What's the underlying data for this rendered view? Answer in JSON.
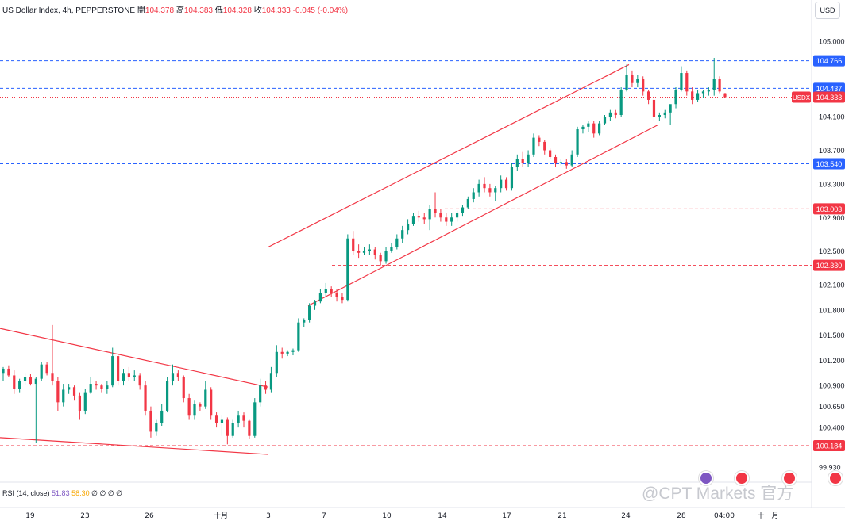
{
  "header": {
    "symbol": "US Dollar Index, 4h, PEPPERSTONE",
    "o_label": "開",
    "o_val": "104.378",
    "h_label": "高",
    "h_val": "104.383",
    "l_label": "低",
    "l_val": "104.328",
    "c_label": "收",
    "c_val": "104.333",
    "change": "-0.045 (-0.04%)"
  },
  "currency_button": "USD",
  "indicator": {
    "name": "RSI (14, close)",
    "v1": "51.83",
    "v2": "58.30",
    "extras": "∅ ∅ ∅ ∅"
  },
  "watermark": "@CPT Markets 官方",
  "colors": {
    "up": "#089981",
    "down": "#f23645",
    "blue_level": "#2962ff",
    "red_level": "#f23645",
    "channel": "#f23645"
  },
  "chart_data": {
    "type": "candlestick",
    "title": "US Dollar Index, 4h, PEPPERSTONE",
    "x_ticks": [
      "19",
      "23",
      "26",
      "十月",
      "3",
      "7",
      "10",
      "14",
      "17",
      "21",
      "24",
      "28",
      "04:00",
      "十一月"
    ],
    "y_ticks": [
      "105.000",
      "104.100",
      "103.700",
      "103.300",
      "102.900",
      "102.500",
      "102.100",
      "101.800",
      "101.500",
      "101.200",
      "100.900",
      "100.650",
      "100.400",
      "99.930"
    ],
    "ylim": [
      99.75,
      105.3
    ],
    "current_price": {
      "label": "USDX",
      "value": "104.333"
    },
    "levels": [
      {
        "value": "104.766",
        "color": "blue",
        "from_date": "start"
      },
      {
        "value": "104.437",
        "color": "blue",
        "from_date": "start"
      },
      {
        "value": "103.540",
        "color": "blue",
        "from_date": "start"
      },
      {
        "value": "103.003",
        "color": "red",
        "from_date": "Oct 14"
      },
      {
        "value": "102.330",
        "color": "red",
        "from_date": "Oct 8"
      },
      {
        "value": "100.184",
        "color": "red",
        "from_date": "start"
      }
    ],
    "trendlines": [
      {
        "name": "descending upper",
        "from": [
          "Sep 17",
          101.58
        ],
        "to": [
          "Oct 3",
          100.88
        ]
      },
      {
        "name": "descending lower",
        "from": [
          "Sep 17",
          100.28
        ],
        "to": [
          "Oct 3",
          100.08
        ]
      },
      {
        "name": "channel upper",
        "from": [
          "Oct 3",
          102.55
        ],
        "to": [
          "Oct 24",
          104.72
        ]
      },
      {
        "name": "channel lower",
        "from": [
          "Oct 5",
          101.85
        ],
        "to": [
          "Oct 26",
          104.0
        ]
      }
    ],
    "candles": [
      {
        "o": 101.05,
        "h": 101.12,
        "l": 100.95,
        "c": 101.1
      },
      {
        "o": 101.1,
        "h": 101.14,
        "l": 101.0,
        "c": 101.02
      },
      {
        "o": 101.02,
        "h": 101.08,
        "l": 100.8,
        "c": 100.86
      },
      {
        "o": 100.86,
        "h": 100.98,
        "l": 100.82,
        "c": 100.95
      },
      {
        "o": 100.95,
        "h": 101.05,
        "l": 100.9,
        "c": 101.0
      },
      {
        "o": 101.0,
        "h": 101.04,
        "l": 100.9,
        "c": 100.92
      },
      {
        "o": 100.92,
        "h": 101.0,
        "l": 100.22,
        "c": 100.98
      },
      {
        "o": 100.98,
        "h": 101.18,
        "l": 100.95,
        "c": 101.15
      },
      {
        "o": 101.15,
        "h": 101.18,
        "l": 101.02,
        "c": 101.05
      },
      {
        "o": 101.05,
        "h": 101.62,
        "l": 100.9,
        "c": 100.95
      },
      {
        "o": 100.95,
        "h": 101.0,
        "l": 100.6,
        "c": 100.7
      },
      {
        "o": 100.7,
        "h": 100.92,
        "l": 100.65,
        "c": 100.85
      },
      {
        "o": 100.85,
        "h": 100.92,
        "l": 100.8,
        "c": 100.88
      },
      {
        "o": 100.88,
        "h": 100.9,
        "l": 100.72,
        "c": 100.78
      },
      {
        "o": 100.78,
        "h": 100.82,
        "l": 100.5,
        "c": 100.6
      },
      {
        "o": 100.6,
        "h": 100.86,
        "l": 100.56,
        "c": 100.82
      },
      {
        "o": 100.82,
        "h": 101.0,
        "l": 100.8,
        "c": 100.92
      },
      {
        "o": 100.92,
        "h": 100.95,
        "l": 100.85,
        "c": 100.9
      },
      {
        "o": 100.9,
        "h": 100.92,
        "l": 100.82,
        "c": 100.86
      },
      {
        "o": 100.86,
        "h": 100.95,
        "l": 100.8,
        "c": 100.9
      },
      {
        "o": 100.9,
        "h": 101.35,
        "l": 100.88,
        "c": 101.25
      },
      {
        "o": 101.25,
        "h": 101.28,
        "l": 100.9,
        "c": 100.95
      },
      {
        "o": 100.95,
        "h": 101.1,
        "l": 100.9,
        "c": 101.05
      },
      {
        "o": 101.05,
        "h": 101.12,
        "l": 100.95,
        "c": 101.0
      },
      {
        "o": 101.0,
        "h": 101.08,
        "l": 100.95,
        "c": 101.02
      },
      {
        "o": 101.02,
        "h": 101.05,
        "l": 100.85,
        "c": 100.9
      },
      {
        "o": 100.9,
        "h": 100.95,
        "l": 100.55,
        "c": 100.6
      },
      {
        "o": 100.6,
        "h": 100.65,
        "l": 100.28,
        "c": 100.35
      },
      {
        "o": 100.35,
        "h": 100.5,
        "l": 100.3,
        "c": 100.45
      },
      {
        "o": 100.45,
        "h": 100.68,
        "l": 100.42,
        "c": 100.6
      },
      {
        "o": 100.6,
        "h": 101.0,
        "l": 100.58,
        "c": 100.95
      },
      {
        "o": 100.95,
        "h": 101.15,
        "l": 100.9,
        "c": 101.05
      },
      {
        "o": 101.05,
        "h": 101.08,
        "l": 100.95,
        "c": 101.0
      },
      {
        "o": 101.0,
        "h": 101.02,
        "l": 100.7,
        "c": 100.75
      },
      {
        "o": 100.75,
        "h": 100.8,
        "l": 100.5,
        "c": 100.55
      },
      {
        "o": 100.55,
        "h": 100.72,
        "l": 100.5,
        "c": 100.68
      },
      {
        "o": 100.68,
        "h": 100.7,
        "l": 100.6,
        "c": 100.65
      },
      {
        "o": 100.65,
        "h": 100.95,
        "l": 100.62,
        "c": 100.85
      },
      {
        "o": 100.85,
        "h": 100.88,
        "l": 100.5,
        "c": 100.55
      },
      {
        "o": 100.55,
        "h": 100.58,
        "l": 100.4,
        "c": 100.45
      },
      {
        "o": 100.45,
        "h": 100.55,
        "l": 100.3,
        "c": 100.5
      },
      {
        "o": 100.5,
        "h": 100.52,
        "l": 100.2,
        "c": 100.3
      },
      {
        "o": 100.3,
        "h": 100.5,
        "l": 100.28,
        "c": 100.45
      },
      {
        "o": 100.45,
        "h": 100.6,
        "l": 100.4,
        "c": 100.55
      },
      {
        "o": 100.55,
        "h": 100.58,
        "l": 100.4,
        "c": 100.48
      },
      {
        "o": 100.48,
        "h": 100.5,
        "l": 100.26,
        "c": 100.3
      },
      {
        "o": 100.3,
        "h": 100.75,
        "l": 100.28,
        "c": 100.7
      },
      {
        "o": 100.7,
        "h": 100.98,
        "l": 100.65,
        "c": 100.9
      },
      {
        "o": 100.9,
        "h": 100.95,
        "l": 100.8,
        "c": 100.85
      },
      {
        "o": 100.85,
        "h": 101.12,
        "l": 100.82,
        "c": 101.05
      },
      {
        "o": 101.05,
        "h": 101.38,
        "l": 101.0,
        "c": 101.3
      },
      {
        "o": 101.3,
        "h": 101.35,
        "l": 101.22,
        "c": 101.28
      },
      {
        "o": 101.28,
        "h": 101.32,
        "l": 101.25,
        "c": 101.3
      },
      {
        "o": 101.3,
        "h": 101.34,
        "l": 101.26,
        "c": 101.32
      },
      {
        "o": 101.32,
        "h": 101.7,
        "l": 101.3,
        "c": 101.65
      },
      {
        "o": 101.65,
        "h": 101.7,
        "l": 101.6,
        "c": 101.68
      },
      {
        "o": 101.68,
        "h": 101.88,
        "l": 101.65,
        "c": 101.85
      },
      {
        "o": 101.85,
        "h": 101.92,
        "l": 101.8,
        "c": 101.9
      },
      {
        "o": 101.9,
        "h": 102.05,
        "l": 101.88,
        "c": 102.0
      },
      {
        "o": 102.0,
        "h": 102.12,
        "l": 101.95,
        "c": 102.05
      },
      {
        "o": 102.05,
        "h": 102.08,
        "l": 101.95,
        "c": 102.0
      },
      {
        "o": 102.0,
        "h": 102.05,
        "l": 101.9,
        "c": 101.95
      },
      {
        "o": 101.95,
        "h": 102.0,
        "l": 101.88,
        "c": 101.92
      },
      {
        "o": 101.92,
        "h": 102.7,
        "l": 101.9,
        "c": 102.65
      },
      {
        "o": 102.65,
        "h": 102.74,
        "l": 102.45,
        "c": 102.5
      },
      {
        "o": 102.5,
        "h": 102.58,
        "l": 102.42,
        "c": 102.48
      },
      {
        "o": 102.48,
        "h": 102.55,
        "l": 102.45,
        "c": 102.5
      },
      {
        "o": 102.5,
        "h": 102.58,
        "l": 102.45,
        "c": 102.52
      },
      {
        "o": 102.52,
        "h": 102.55,
        "l": 102.4,
        "c": 102.45
      },
      {
        "o": 102.45,
        "h": 102.48,
        "l": 102.33,
        "c": 102.38
      },
      {
        "o": 102.38,
        "h": 102.55,
        "l": 102.35,
        "c": 102.5
      },
      {
        "o": 102.5,
        "h": 102.6,
        "l": 102.48,
        "c": 102.55
      },
      {
        "o": 102.55,
        "h": 102.7,
        "l": 102.52,
        "c": 102.65
      },
      {
        "o": 102.65,
        "h": 102.8,
        "l": 102.6,
        "c": 102.75
      },
      {
        "o": 102.75,
        "h": 102.88,
        "l": 102.7,
        "c": 102.82
      },
      {
        "o": 102.82,
        "h": 102.95,
        "l": 102.8,
        "c": 102.92
      },
      {
        "o": 102.92,
        "h": 102.98,
        "l": 102.85,
        "c": 102.9
      },
      {
        "o": 102.9,
        "h": 102.95,
        "l": 102.82,
        "c": 102.88
      },
      {
        "o": 102.88,
        "h": 103.05,
        "l": 102.75,
        "c": 103.0
      },
      {
        "o": 103.0,
        "h": 103.2,
        "l": 102.9,
        "c": 102.95
      },
      {
        "o": 102.95,
        "h": 103.0,
        "l": 102.85,
        "c": 102.9
      },
      {
        "o": 102.9,
        "h": 102.95,
        "l": 102.8,
        "c": 102.85
      },
      {
        "o": 102.85,
        "h": 102.95,
        "l": 102.8,
        "c": 102.9
      },
      {
        "o": 102.9,
        "h": 102.98,
        "l": 102.85,
        "c": 102.95
      },
      {
        "o": 102.95,
        "h": 103.05,
        "l": 102.92,
        "c": 103.02
      },
      {
        "o": 103.02,
        "h": 103.15,
        "l": 103.0,
        "c": 103.12
      },
      {
        "o": 103.12,
        "h": 103.25,
        "l": 103.08,
        "c": 103.2
      },
      {
        "o": 103.2,
        "h": 103.35,
        "l": 103.15,
        "c": 103.3
      },
      {
        "o": 103.3,
        "h": 103.38,
        "l": 103.2,
        "c": 103.25
      },
      {
        "o": 103.25,
        "h": 103.3,
        "l": 103.15,
        "c": 103.2
      },
      {
        "o": 103.2,
        "h": 103.28,
        "l": 103.1,
        "c": 103.25
      },
      {
        "o": 103.25,
        "h": 103.4,
        "l": 103.2,
        "c": 103.35
      },
      {
        "o": 103.35,
        "h": 103.38,
        "l": 103.22,
        "c": 103.25
      },
      {
        "o": 103.25,
        "h": 103.55,
        "l": 103.22,
        "c": 103.5
      },
      {
        "o": 103.5,
        "h": 103.65,
        "l": 103.45,
        "c": 103.6
      },
      {
        "o": 103.6,
        "h": 103.68,
        "l": 103.5,
        "c": 103.55
      },
      {
        "o": 103.55,
        "h": 103.7,
        "l": 103.5,
        "c": 103.65
      },
      {
        "o": 103.65,
        "h": 103.9,
        "l": 103.62,
        "c": 103.85
      },
      {
        "o": 103.85,
        "h": 103.88,
        "l": 103.75,
        "c": 103.8
      },
      {
        "o": 103.8,
        "h": 103.82,
        "l": 103.65,
        "c": 103.7
      },
      {
        "o": 103.7,
        "h": 103.72,
        "l": 103.6,
        "c": 103.62
      },
      {
        "o": 103.62,
        "h": 103.65,
        "l": 103.5,
        "c": 103.55
      },
      {
        "o": 103.55,
        "h": 103.6,
        "l": 103.52,
        "c": 103.56
      },
      {
        "o": 103.56,
        "h": 103.6,
        "l": 103.48,
        "c": 103.52
      },
      {
        "o": 103.52,
        "h": 103.7,
        "l": 103.5,
        "c": 103.65
      },
      {
        "o": 103.65,
        "h": 103.98,
        "l": 103.62,
        "c": 103.95
      },
      {
        "o": 103.95,
        "h": 104.0,
        "l": 103.9,
        "c": 103.98
      },
      {
        "o": 103.98,
        "h": 104.05,
        "l": 103.92,
        "c": 104.02
      },
      {
        "o": 104.02,
        "h": 104.05,
        "l": 103.85,
        "c": 103.9
      },
      {
        "o": 103.9,
        "h": 104.05,
        "l": 103.88,
        "c": 104.02
      },
      {
        "o": 104.02,
        "h": 104.12,
        "l": 104.0,
        "c": 104.1
      },
      {
        "o": 104.1,
        "h": 104.18,
        "l": 104.05,
        "c": 104.15
      },
      {
        "o": 104.15,
        "h": 104.18,
        "l": 104.08,
        "c": 104.12
      },
      {
        "o": 104.12,
        "h": 104.45,
        "l": 104.1,
        "c": 104.42
      },
      {
        "o": 104.42,
        "h": 104.72,
        "l": 104.4,
        "c": 104.6
      },
      {
        "o": 104.6,
        "h": 104.65,
        "l": 104.45,
        "c": 104.5
      },
      {
        "o": 104.5,
        "h": 104.6,
        "l": 104.45,
        "c": 104.55
      },
      {
        "o": 104.55,
        "h": 104.58,
        "l": 104.35,
        "c": 104.4
      },
      {
        "o": 104.4,
        "h": 104.42,
        "l": 104.25,
        "c": 104.3
      },
      {
        "o": 104.3,
        "h": 104.35,
        "l": 104.05,
        "c": 104.1
      },
      {
        "o": 104.1,
        "h": 104.15,
        "l": 104.05,
        "c": 104.12
      },
      {
        "o": 104.12,
        "h": 104.18,
        "l": 104.08,
        "c": 104.15
      },
      {
        "o": 104.15,
        "h": 104.2,
        "l": 104.0,
        "c": 104.25
      },
      {
        "o": 104.25,
        "h": 104.45,
        "l": 104.2,
        "c": 104.42
      },
      {
        "o": 104.42,
        "h": 104.7,
        "l": 104.4,
        "c": 104.62
      },
      {
        "o": 104.62,
        "h": 104.65,
        "l": 104.35,
        "c": 104.4
      },
      {
        "o": 104.4,
        "h": 104.45,
        "l": 104.25,
        "c": 104.3
      },
      {
        "o": 104.3,
        "h": 104.42,
        "l": 104.28,
        "c": 104.38
      },
      {
        "o": 104.38,
        "h": 104.42,
        "l": 104.32,
        "c": 104.4
      },
      {
        "o": 104.4,
        "h": 104.45,
        "l": 104.35,
        "c": 104.42
      },
      {
        "o": 104.42,
        "h": 104.8,
        "l": 104.35,
        "c": 104.55
      },
      {
        "o": 104.55,
        "h": 104.58,
        "l": 104.38,
        "c": 104.4
      },
      {
        "o": 104.378,
        "h": 104.383,
        "l": 104.328,
        "c": 104.333
      }
    ]
  }
}
